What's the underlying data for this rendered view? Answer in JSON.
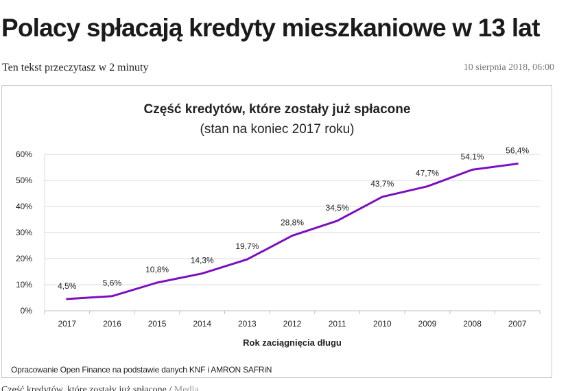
{
  "article": {
    "headline": "Polacy spłacają kredyty mieszkaniowe w 13 lat",
    "read_time": "Ten tekst przeczytasz w 2 minuty",
    "date": "10 sierpnia 2018, 06:00",
    "caption": "Część kredytów, które zostały już spłacone / ",
    "caption_credit": "Media"
  },
  "colors": {
    "line": "#7b0fbf",
    "grid": "#d9d9d9",
    "axis": "#bfbfbf"
  },
  "chart_data": {
    "type": "line",
    "title": "Część kredytów, które zostały już spłacone",
    "subtitle": "(stan na koniec 2017 roku)",
    "xlabel": "Rok zaciągnięcia  długu",
    "ylabel": "",
    "categories": [
      "2017",
      "2016",
      "2015",
      "2014",
      "2013",
      "2012",
      "2011",
      "2010",
      "2009",
      "2008",
      "2007"
    ],
    "series": [
      {
        "values": [
          4.5,
          5.6,
          10.8,
          14.3,
          19.7,
          28.8,
          34.5,
          43.7,
          47.7,
          54.1,
          56.4
        ]
      }
    ],
    "data_labels": [
      "4,5%",
      "5,6%",
      "10,8%",
      "14,3%",
      "19,7%",
      "28,8%",
      "34,5%",
      "43,7%",
      "47,7%",
      "54,1%",
      "56,4%"
    ],
    "y_ticks": [
      "0%",
      "10%",
      "20%",
      "30%",
      "40%",
      "50%",
      "60%"
    ],
    "ylim": [
      0,
      60
    ],
    "grid": true,
    "legend": "none",
    "source": "Opracowanie Open Finance na podstawie danych KNF i AMRON SAFRiN"
  }
}
